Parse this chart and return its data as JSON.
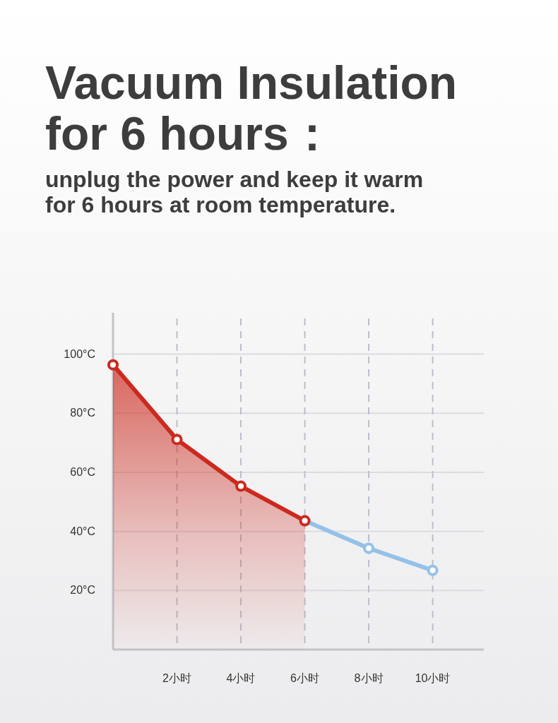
{
  "chart_data": {
    "type": "line",
    "title": "Vacuum Insulation for 6 hours：",
    "subtitle": "unplug the power and keep it warm for 6 hours at room temperature.",
    "xlim": [
      0,
      11.6
    ],
    "xticks": [
      {
        "value": 2,
        "label": "2小时"
      },
      {
        "value": 4,
        "label": "4小时"
      },
      {
        "value": 6,
        "label": "6小时"
      },
      {
        "value": 8,
        "label": "8小时"
      },
      {
        "value": 10,
        "label": "10小时"
      }
    ],
    "ylim": [
      0,
      114
    ],
    "yticks": [
      {
        "value": 20,
        "label": "20°C"
      },
      {
        "value": 40,
        "label": "40°C"
      },
      {
        "value": 60,
        "label": "60°C"
      },
      {
        "value": 80,
        "label": "80°C"
      },
      {
        "value": 100,
        "label": "100°C"
      }
    ],
    "grid": true,
    "marker": "circle",
    "line_style": "solid",
    "series": [
      {
        "type": "area",
        "color": "#cc2a1e",
        "x": [
          0,
          2,
          4,
          6
        ],
        "values": [
          96.4,
          71.1,
          55.3,
          43.6
        ]
      },
      {
        "color": "#94c1e8",
        "x": [
          6,
          8,
          10
        ],
        "values": [
          43.6,
          34.3,
          26.8
        ]
      }
    ]
  }
}
